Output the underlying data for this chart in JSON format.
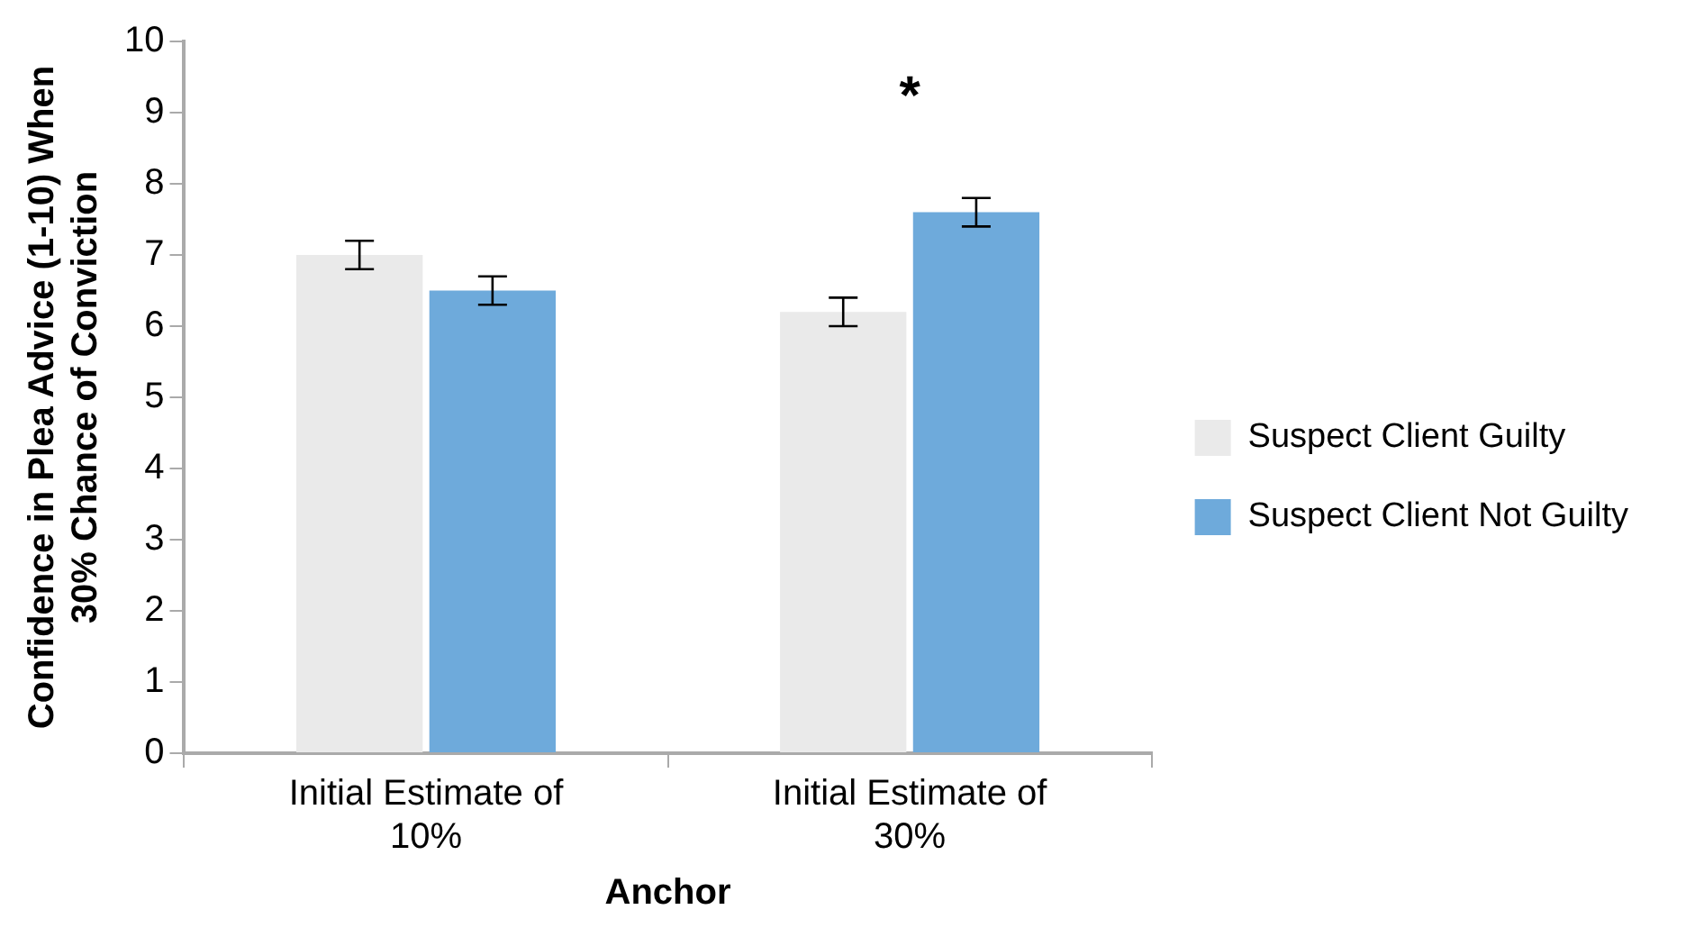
{
  "chart_data": {
    "type": "bar",
    "xlabel": "Anchor",
    "ylabel": "Confidence in Plea Advice (1-10) When\n30% Chance of Conviction",
    "categories": [
      "Initial Estimate of 10%",
      "Initial Estimate of 30%"
    ],
    "series": [
      {
        "name": "Suspect Client Guilty",
        "color": "#eaeaea",
        "values": [
          7.0,
          6.2
        ],
        "errors": [
          0.2,
          0.2
        ]
      },
      {
        "name": "Suspect Client Not Guilty",
        "color": "#6eaadb",
        "values": [
          6.5,
          7.6
        ],
        "errors": [
          0.2,
          0.2
        ]
      }
    ],
    "ylim": [
      0,
      10
    ],
    "yticks": [
      0,
      1,
      2,
      3,
      4,
      5,
      6,
      7,
      8,
      9,
      10
    ],
    "grid": false,
    "legend": "right",
    "annotations": [
      "*"
    ]
  }
}
